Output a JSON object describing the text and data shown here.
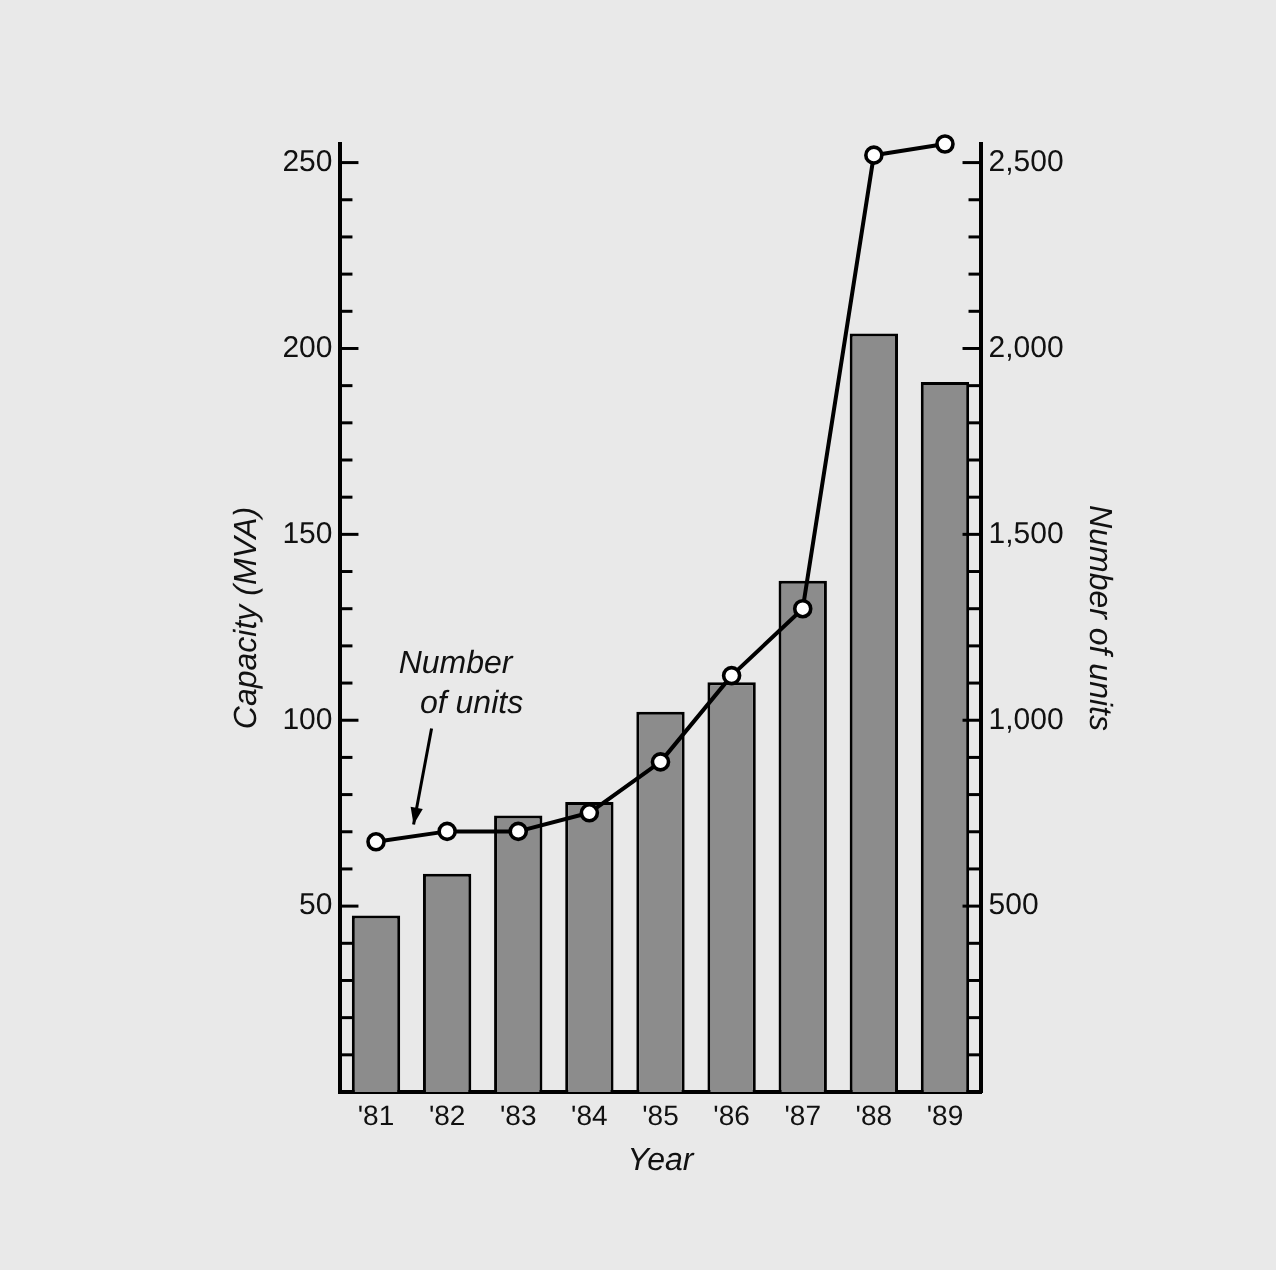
{
  "chart_data": {
    "type": "bar",
    "xlabel": "Year",
    "ylabel": "Capacity (MVA)",
    "y2label": "Number of units",
    "categories": [
      "'81",
      "'82",
      "'83",
      "'84",
      "'85",
      "'86",
      "'87",
      "'88",
      "'89"
    ],
    "series": [
      {
        "color": "#8c8c8c",
        "values": [
          47.5,
          58.7,
          74.4,
          78,
          102.3,
          110.2,
          137.5,
          204,
          191
        ]
      },
      {
        "type": "line",
        "name": "Number of units",
        "axis": "y2",
        "color": "#000000",
        "marker": "circle",
        "values": [
          673,
          701,
          701,
          751,
          888,
          1120,
          1300,
          2520,
          2550
        ]
      }
    ],
    "ylim": [
      0,
      255
    ],
    "yticks": [
      {
        "value": 10,
        "label": null
      },
      {
        "value": 20,
        "label": null
      },
      {
        "value": 30,
        "label": null
      },
      {
        "value": 40,
        "label": null
      },
      50,
      {
        "value": 60,
        "label": null
      },
      {
        "value": 70,
        "label": null
      },
      {
        "value": 80,
        "label": null
      },
      {
        "value": 90,
        "label": null
      },
      100,
      {
        "value": 110,
        "label": null
      },
      {
        "value": 120,
        "label": null
      },
      {
        "value": 130,
        "label": null
      },
      {
        "value": 140,
        "label": null
      },
      150,
      {
        "value": 160,
        "label": null
      },
      {
        "value": 170,
        "label": null
      },
      {
        "value": 180,
        "label": null
      },
      {
        "value": 190,
        "label": null
      },
      200,
      {
        "value": 210,
        "label": null
      },
      {
        "value": 220,
        "label": null
      },
      {
        "value": 230,
        "label": null
      },
      {
        "value": 240,
        "label": null
      },
      250
    ],
    "y2lim": [
      0,
      2550
    ],
    "y2ticks": [
      {
        "value": 100,
        "label": null
      },
      {
        "value": 200,
        "label": null
      },
      {
        "value": 300,
        "label": null
      },
      {
        "value": 400,
        "label": null
      },
      {
        "value": 500,
        "label": "500"
      },
      {
        "value": 600,
        "label": null
      },
      {
        "value": 700,
        "label": null
      },
      {
        "value": 800,
        "label": null
      },
      {
        "value": 900,
        "label": null
      },
      {
        "value": 1000,
        "label": "1,000"
      },
      {
        "value": 1100,
        "label": null
      },
      {
        "value": 1200,
        "label": null
      },
      {
        "value": 1300,
        "label": null
      },
      {
        "value": 1400,
        "label": null
      },
      {
        "value": 1500,
        "label": "1,500"
      },
      {
        "value": 1600,
        "label": null
      },
      {
        "value": 1700,
        "label": null
      },
      {
        "value": 1800,
        "label": null
      },
      {
        "value": 1900,
        "label": null
      },
      {
        "value": 2000,
        "label": "2,000"
      },
      {
        "value": 2100,
        "label": null
      },
      {
        "value": 2200,
        "label": null
      },
      {
        "value": 2300,
        "label": null
      },
      {
        "value": 2400,
        "label": null
      },
      {
        "value": 2500,
        "label": "2,500"
      }
    ],
    "grid": false,
    "legend": false,
    "line_style": "solid"
  }
}
